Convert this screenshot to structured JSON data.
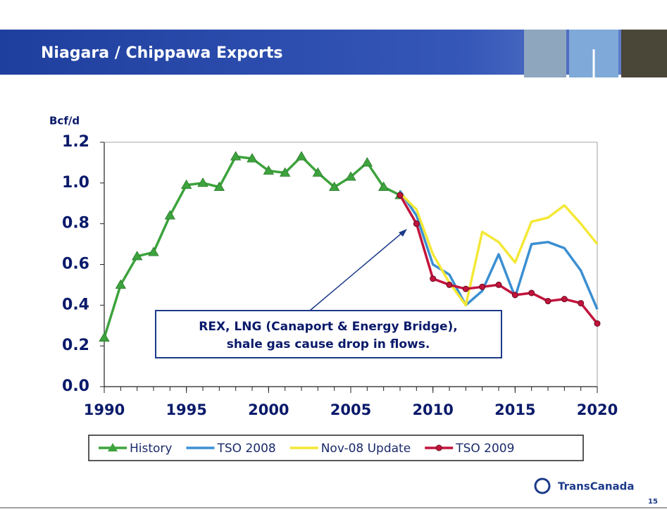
{
  "slide": {
    "title": "Niagara / Chippawa Exports",
    "logo": "TransCanada",
    "page_number": "15"
  },
  "chart_data": {
    "type": "line",
    "y_label": "Bcf/d",
    "x": [
      1990,
      1991,
      1992,
      1993,
      1994,
      1995,
      1996,
      1997,
      1998,
      1999,
      2000,
      2001,
      2002,
      2003,
      2004,
      2005,
      2006,
      2007,
      2008,
      2009,
      2010,
      2011,
      2012,
      2013,
      2014,
      2015,
      2016,
      2017,
      2018,
      2019,
      2020
    ],
    "xlim": [
      1990,
      2020
    ],
    "xticks": [
      1990,
      1995,
      2000,
      2005,
      2010,
      2015,
      2020
    ],
    "ylim": [
      0,
      1.2
    ],
    "yticks": [
      {
        "value": 0,
        "label": "0.0"
      },
      0.2,
      0.4,
      0.6,
      0.8,
      {
        "value": 1,
        "label": "1.0"
      },
      1.2
    ],
    "grid": false,
    "legend": "bottom",
    "series": [
      {
        "name": "History",
        "color": "#3da33d",
        "marker": "triangle",
        "values": [
          0.24,
          0.5,
          0.64,
          0.66,
          0.84,
          0.99,
          1.0,
          0.98,
          1.13,
          1.12,
          1.06,
          1.05,
          1.13,
          1.05,
          0.98,
          1.03,
          1.1,
          0.98,
          0.94,
          null,
          null,
          null,
          null,
          null,
          null,
          null,
          null,
          null,
          null,
          null,
          null
        ]
      },
      {
        "name": "TSO 2008",
        "color": "#3b8fd2",
        "marker": "none",
        "values": [
          null,
          null,
          null,
          null,
          null,
          null,
          null,
          null,
          null,
          null,
          null,
          null,
          null,
          null,
          null,
          null,
          null,
          null,
          0.96,
          0.84,
          0.6,
          0.55,
          0.4,
          0.47,
          0.65,
          0.44,
          0.7,
          0.71,
          0.68,
          0.57,
          0.38
        ]
      },
      {
        "name": "Nov-08 Update",
        "color": "#f4e837",
        "marker": "none",
        "values": [
          null,
          null,
          null,
          null,
          null,
          null,
          null,
          null,
          null,
          null,
          null,
          null,
          null,
          null,
          null,
          null,
          null,
          null,
          0.95,
          0.87,
          0.65,
          0.51,
          0.4,
          0.76,
          0.71,
          0.61,
          0.81,
          0.83,
          0.89,
          0.8,
          0.7
        ]
      },
      {
        "name": "TSO 2009",
        "color": "#c2143c",
        "marker": "circle",
        "values": [
          null,
          null,
          null,
          null,
          null,
          null,
          null,
          null,
          null,
          null,
          null,
          null,
          null,
          null,
          null,
          null,
          null,
          null,
          0.94,
          0.8,
          0.53,
          0.5,
          0.48,
          0.49,
          0.5,
          0.45,
          0.46,
          0.42,
          0.43,
          0.41,
          0.31
        ]
      }
    ],
    "annotation": [
      "REX, LNG (Canaport & Energy Bridge),",
      "shale gas cause drop in flows."
    ]
  }
}
